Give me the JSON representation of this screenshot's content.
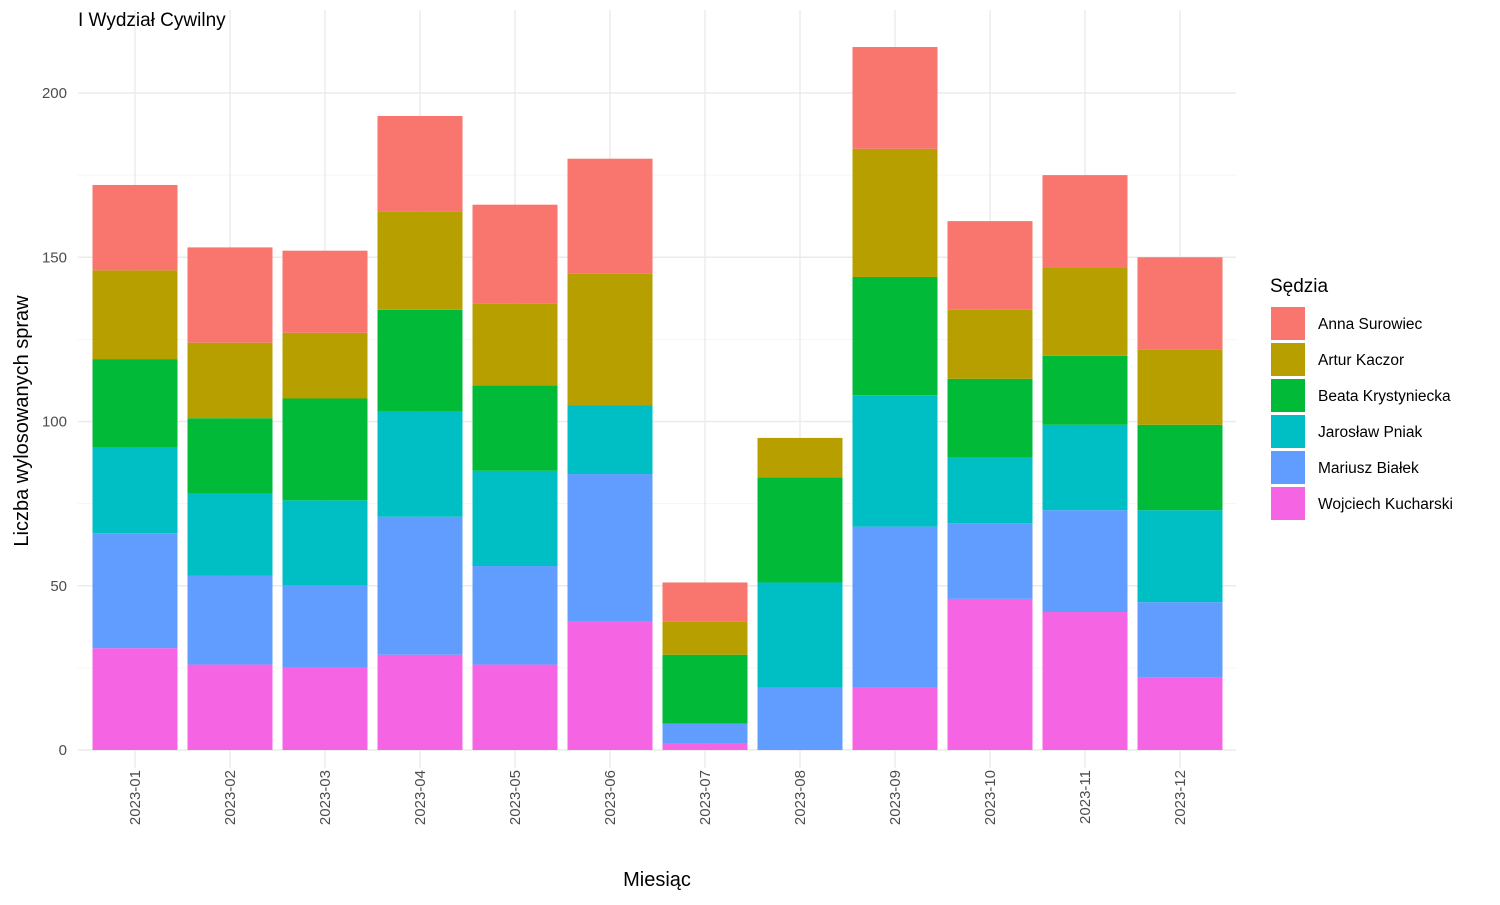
{
  "chart_data": {
    "type": "bar",
    "stacked": true,
    "title": "I Wydział Cywilny",
    "xlabel": "Miesiąc",
    "ylabel": "Liczba wylosowanych spraw",
    "ylim": [
      0,
      220
    ],
    "yticks": [
      0,
      50,
      100,
      150,
      200
    ],
    "grid": true,
    "legend_title": "Sędzia",
    "legend_position": "right",
    "categories": [
      "2023-01",
      "2023-02",
      "2023-03",
      "2023-04",
      "2023-05",
      "2023-06",
      "2023-07",
      "2023-08",
      "2023-09",
      "2023-10",
      "2023-11",
      "2023-12"
    ],
    "series": [
      {
        "name": "Wojciech Kucharski",
        "color": "#F564E3",
        "values": [
          31,
          26,
          25,
          29,
          26,
          39,
          2,
          0,
          19,
          46,
          42,
          22
        ]
      },
      {
        "name": "Mariusz Białek",
        "color": "#619CFF",
        "values": [
          35,
          27,
          25,
          42,
          30,
          45,
          6,
          19,
          49,
          23,
          31,
          23
        ]
      },
      {
        "name": "Jarosław Pniak",
        "color": "#00BFC4",
        "values": [
          26,
          25,
          26,
          32,
          29,
          21,
          0,
          32,
          40,
          20,
          26,
          28
        ]
      },
      {
        "name": "Beata Krystyniecka",
        "color": "#00BA38",
        "values": [
          27,
          23,
          31,
          31,
          26,
          0,
          21,
          32,
          36,
          24,
          21,
          26
        ]
      },
      {
        "name": "Artur Kaczor",
        "color": "#B79F00",
        "values": [
          27,
          23,
          20,
          30,
          25,
          40,
          10,
          12,
          39,
          21,
          27,
          23
        ]
      },
      {
        "name": "Anna Surowiec",
        "color": "#F8766D",
        "values": [
          26,
          29,
          25,
          29,
          30,
          35,
          12,
          0,
          31,
          27,
          28,
          28
        ]
      }
    ],
    "legend_order": [
      "Anna Surowiec",
      "Artur Kaczor",
      "Beata Krystyniecka",
      "Jarosław Pniak",
      "Mariusz Białek",
      "Wojciech Kucharski"
    ]
  }
}
